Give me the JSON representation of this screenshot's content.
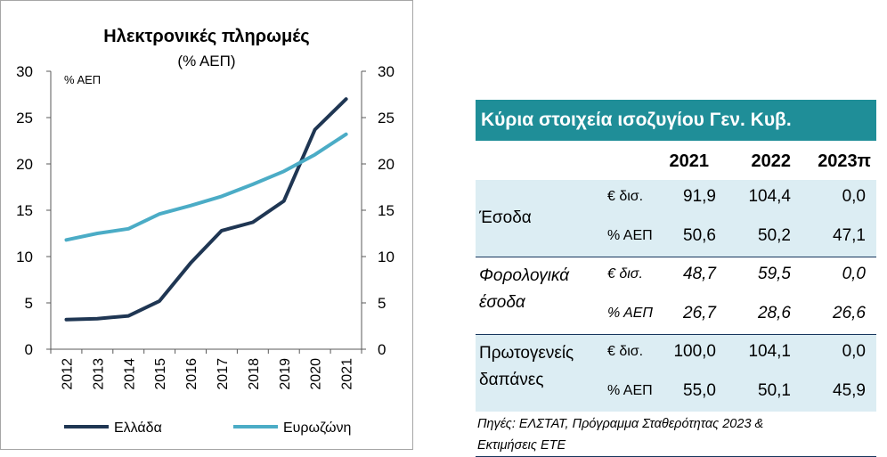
{
  "chart_data": {
    "type": "line",
    "title": "Ηλεκτρονικές πληρωμές",
    "subtitle": "(% ΑΕΠ)",
    "unit_label": "% ΑΕΠ",
    "categories": [
      "2012",
      "2013",
      "2014",
      "2015",
      "2016",
      "2017",
      "2018",
      "2019",
      "2020",
      "2021"
    ],
    "ylim": [
      0,
      30
    ],
    "yticks": [
      "0",
      "5",
      "10",
      "15",
      "20",
      "25",
      "30"
    ],
    "series": [
      {
        "name": "Ελλάδα",
        "color": "#1f3653",
        "values": [
          3.2,
          3.3,
          3.6,
          5.2,
          9.3,
          12.8,
          13.7,
          16.0,
          23.7,
          27.0
        ]
      },
      {
        "name": "Ευρωζώνη",
        "color": "#4bacc6",
        "values": [
          11.8,
          12.5,
          13.0,
          14.6,
          15.5,
          16.5,
          17.8,
          19.2,
          21.0,
          23.2
        ]
      }
    ],
    "legend_position": "bottom"
  },
  "table": {
    "title": "Κύρια στοιχεία ισοζυγίου Γεν. Κυβ.",
    "columns": [
      "2021",
      "2022",
      "2023π"
    ],
    "title_color": "#1f8e98",
    "shade_color": "#dcedf3",
    "groups": [
      {
        "label_lines": [
          "Έσοδα"
        ],
        "italic": false,
        "shaded": true,
        "rows": [
          {
            "unit": "€ δισ.",
            "values": [
              "91,9",
              "104,4",
              "0,0"
            ]
          },
          {
            "unit": "% ΑΕΠ",
            "values": [
              "50,6",
              "50,2",
              "47,1"
            ]
          }
        ]
      },
      {
        "label_lines": [
          "Φορολογικά",
          "έσοδα"
        ],
        "italic": true,
        "shaded": false,
        "rows": [
          {
            "unit": "€ δισ.",
            "values": [
              "48,7",
              "59,5",
              "0,0"
            ]
          },
          {
            "unit": "% ΑΕΠ",
            "values": [
              "26,7",
              "28,6",
              "26,6"
            ]
          }
        ]
      },
      {
        "label_lines": [
          "Πρωτογενείς",
          "δαπάνες"
        ],
        "italic": false,
        "shaded": true,
        "rows": [
          {
            "unit": "€ δισ.",
            "values": [
              "100,0",
              "104,1",
              "0,0"
            ]
          },
          {
            "unit": "% ΑΕΠ",
            "values": [
              "55,0",
              "50,1",
              "45,9"
            ]
          }
        ]
      }
    ],
    "source_lines": [
      "Πηγές: ΕΛΣΤΑΤ, Πρόγραμμα Σταθερότητας 2023 &",
      "Εκτιμήσεις ΕΤΕ"
    ]
  }
}
